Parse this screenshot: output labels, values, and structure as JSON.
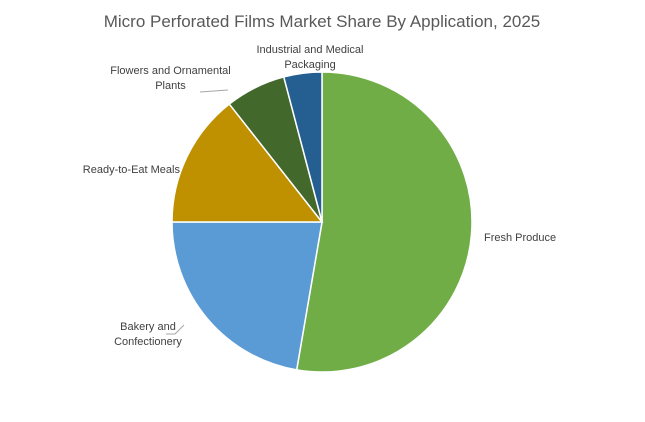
{
  "chart_data": {
    "type": "pie",
    "title": "Micro Perforated Films Market Share By Application, 2025",
    "categories": [
      "Fresh Produce",
      "Bakery and Confectionery",
      "Ready-to-Eat Meals",
      "Flowers and Ornamental Plants",
      "Industrial and Medical Packaging"
    ],
    "values": [
      52.7,
      22.3,
      14.4,
      6.5,
      4.1
    ],
    "colors": [
      "#70ad47",
      "#5b9bd5",
      "#bf9000",
      "#43682b",
      "#255e91"
    ]
  }
}
